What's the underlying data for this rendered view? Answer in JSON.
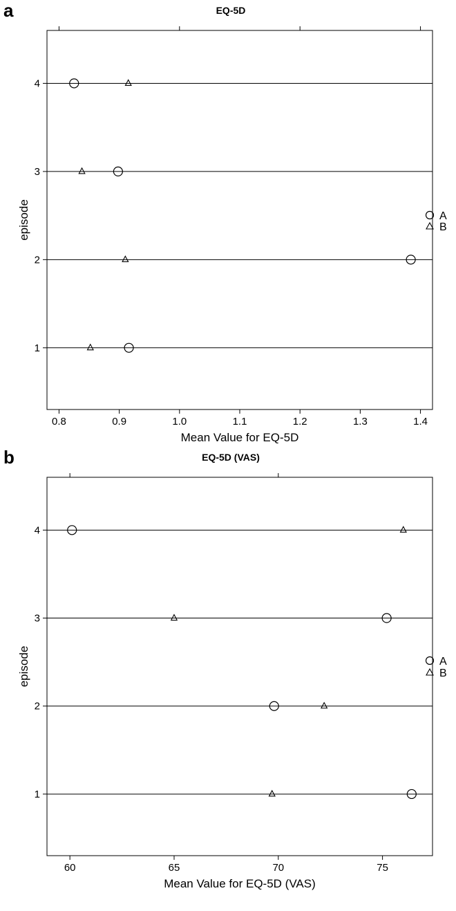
{
  "chart_data": [
    {
      "panel_letter": "a",
      "type": "scatter",
      "title": "EQ-5D",
      "xlabel": "Mean Value for EQ-5D",
      "ylabel": "episode",
      "xlim": [
        0.78,
        1.42
      ],
      "xticks": [
        "0.8",
        "0.9",
        "1.0",
        "1.1",
        "1.2",
        "1.3",
        "1.4"
      ],
      "ylim": [
        0.3,
        4.6
      ],
      "yticks": [
        "1",
        "2",
        "3",
        "4"
      ],
      "grid": "horizontal reference line at each episode",
      "legend_placement": "right",
      "series": [
        {
          "name": "A",
          "marker": "circle",
          "x": [
            0.916,
            1.384,
            0.898,
            0.825
          ],
          "y": [
            1,
            2,
            3,
            4
          ]
        },
        {
          "name": "B",
          "marker": "triangle",
          "x": [
            0.852,
            0.91,
            0.838,
            0.915
          ],
          "y": [
            1,
            2,
            3,
            4
          ]
        }
      ]
    },
    {
      "panel_letter": "b",
      "type": "scatter",
      "title": "EQ-5D (VAS)",
      "xlabel": "Mean Value for EQ-5D (VAS)",
      "ylabel": "episode",
      "xlim": [
        58.9,
        77.4
      ],
      "xticks": [
        "60",
        "65",
        "70",
        "75"
      ],
      "ylim": [
        0.3,
        4.6
      ],
      "yticks": [
        "1",
        "2",
        "3",
        "4"
      ],
      "grid": "horizontal reference line at each episode",
      "legend_placement": "right",
      "series": [
        {
          "name": "A",
          "marker": "circle",
          "x": [
            76.4,
            69.8,
            75.2,
            60.1
          ],
          "y": [
            1,
            2,
            3,
            4
          ]
        },
        {
          "name": "B",
          "marker": "triangle",
          "x": [
            69.7,
            72.2,
            65.0,
            76.0
          ],
          "y": [
            1,
            2,
            3,
            4
          ]
        }
      ]
    }
  ]
}
